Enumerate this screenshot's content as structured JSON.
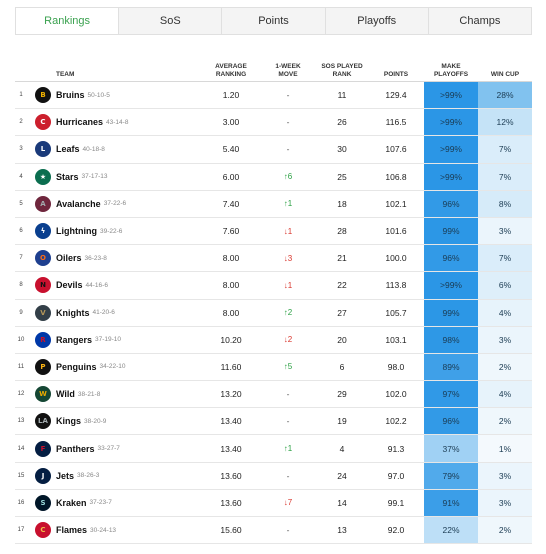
{
  "tabs": [
    {
      "label": "Rankings",
      "active": true
    },
    {
      "label": "SoS",
      "active": false
    },
    {
      "label": "Points",
      "active": false
    },
    {
      "label": "Playoffs",
      "active": false
    },
    {
      "label": "Champs",
      "active": false
    }
  ],
  "headers": {
    "team": "TEAM",
    "avg": "AVERAGE RANKING",
    "move": "1-WEEK MOVE",
    "sos": "SOS PLAYED RANK",
    "points": "POINTS",
    "playoffs": "MAKE PLAYOFFS",
    "cup": "WIN CUP"
  },
  "rows": [
    {
      "rank": "1",
      "team": "Bruins",
      "record": "50-10-5",
      "avg": "1.20",
      "move": "-",
      "sos": "11",
      "points": "129.4",
      "playoffs": ">99%",
      "cup": "28%",
      "playoffs_pct": 99.5,
      "cup_pct": 28,
      "logo": {
        "text": "B",
        "bg": "#111111",
        "fg": "#f4b400"
      }
    },
    {
      "rank": "2",
      "team": "Hurricanes",
      "record": "43-14-8",
      "avg": "3.00",
      "move": "-",
      "sos": "26",
      "points": "116.5",
      "playoffs": ">99%",
      "cup": "12%",
      "playoffs_pct": 99.5,
      "cup_pct": 12,
      "logo": {
        "text": "C",
        "bg": "#cc1f2d",
        "fg": "#ffffff"
      }
    },
    {
      "rank": "3",
      "team": "Leafs",
      "record": "40-18-8",
      "avg": "5.40",
      "move": "-",
      "sos": "30",
      "points": "107.6",
      "playoffs": ">99%",
      "cup": "7%",
      "playoffs_pct": 99.5,
      "cup_pct": 7,
      "logo": {
        "text": "L",
        "bg": "#1a3a7a",
        "fg": "#ffffff"
      }
    },
    {
      "rank": "4",
      "team": "Stars",
      "record": "37-17-13",
      "avg": "6.00",
      "move": "6",
      "move_dir": "up",
      "sos": "25",
      "points": "106.8",
      "playoffs": ">99%",
      "cup": "7%",
      "playoffs_pct": 99.5,
      "cup_pct": 7,
      "logo": {
        "text": "★",
        "bg": "#0b6e4f",
        "fg": "#ffffff"
      }
    },
    {
      "rank": "5",
      "team": "Avalanche",
      "record": "37-22-6",
      "avg": "7.40",
      "move": "1",
      "move_dir": "up",
      "sos": "18",
      "points": "102.1",
      "playoffs": "96%",
      "cup": "8%",
      "playoffs_pct": 96,
      "cup_pct": 8,
      "logo": {
        "text": "A",
        "bg": "#6f263d",
        "fg": "#a2aaad"
      }
    },
    {
      "rank": "6",
      "team": "Lightning",
      "record": "39-22-6",
      "avg": "7.60",
      "move": "1",
      "move_dir": "down",
      "sos": "28",
      "points": "101.6",
      "playoffs": "99%",
      "cup": "3%",
      "playoffs_pct": 99,
      "cup_pct": 3,
      "logo": {
        "text": "ϟ",
        "bg": "#0a3f8f",
        "fg": "#ffffff"
      }
    },
    {
      "rank": "7",
      "team": "Oilers",
      "record": "36-23-8",
      "avg": "8.00",
      "move": "3",
      "move_dir": "down",
      "sos": "21",
      "points": "100.0",
      "playoffs": "96%",
      "cup": "7%",
      "playoffs_pct": 96,
      "cup_pct": 7,
      "logo": {
        "text": "O",
        "bg": "#1e3f8f",
        "fg": "#ff6a13"
      }
    },
    {
      "rank": "8",
      "team": "Devils",
      "record": "44-16-6",
      "avg": "8.00",
      "move": "1",
      "move_dir": "down",
      "sos": "22",
      "points": "113.8",
      "playoffs": ">99%",
      "cup": "6%",
      "playoffs_pct": 99.5,
      "cup_pct": 6,
      "logo": {
        "text": "N",
        "bg": "#c8102e",
        "fg": "#111111"
      }
    },
    {
      "rank": "9",
      "team": "Knights",
      "record": "41-20-6",
      "avg": "8.00",
      "move": "2",
      "move_dir": "up",
      "sos": "27",
      "points": "105.7",
      "playoffs": "99%",
      "cup": "4%",
      "playoffs_pct": 99,
      "cup_pct": 4,
      "logo": {
        "text": "V",
        "bg": "#333f48",
        "fg": "#b4975a"
      }
    },
    {
      "rank": "10",
      "team": "Rangers",
      "record": "37-19-10",
      "avg": "10.20",
      "move": "2",
      "move_dir": "down",
      "sos": "20",
      "points": "103.1",
      "playoffs": "98%",
      "cup": "3%",
      "playoffs_pct": 98,
      "cup_pct": 3,
      "logo": {
        "text": "R",
        "bg": "#0038a8",
        "fg": "#ce1126"
      }
    },
    {
      "rank": "11",
      "team": "Penguins",
      "record": "34-22-10",
      "avg": "11.60",
      "move": "5",
      "move_dir": "up",
      "sos": "6",
      "points": "98.0",
      "playoffs": "89%",
      "cup": "2%",
      "playoffs_pct": 89,
      "cup_pct": 2,
      "logo": {
        "text": "P",
        "bg": "#111111",
        "fg": "#fcb514"
      }
    },
    {
      "rank": "12",
      "team": "Wild",
      "record": "38-21-8",
      "avg": "13.20",
      "move": "-",
      "sos": "29",
      "points": "102.0",
      "playoffs": "97%",
      "cup": "4%",
      "playoffs_pct": 97,
      "cup_pct": 4,
      "logo": {
        "text": "W",
        "bg": "#154734",
        "fg": "#eaaa00"
      }
    },
    {
      "rank": "13",
      "team": "Kings",
      "record": "38-20-9",
      "avg": "13.40",
      "move": "-",
      "sos": "19",
      "points": "102.2",
      "playoffs": "96%",
      "cup": "2%",
      "playoffs_pct": 96,
      "cup_pct": 2,
      "logo": {
        "text": "LA",
        "bg": "#111111",
        "fg": "#a2aaad"
      }
    },
    {
      "rank": "14",
      "team": "Panthers",
      "record": "33-27-7",
      "avg": "13.40",
      "move": "1",
      "move_dir": "up",
      "sos": "4",
      "points": "91.3",
      "playoffs": "37%",
      "cup": "1%",
      "playoffs_pct": 37,
      "cup_pct": 1,
      "logo": {
        "text": "F",
        "bg": "#041e42",
        "fg": "#c8102e"
      }
    },
    {
      "rank": "15",
      "team": "Jets",
      "record": "38-26-3",
      "avg": "13.60",
      "move": "-",
      "sos": "24",
      "points": "97.0",
      "playoffs": "79%",
      "cup": "3%",
      "playoffs_pct": 79,
      "cup_pct": 3,
      "logo": {
        "text": "J",
        "bg": "#041e42",
        "fg": "#ffffff"
      }
    },
    {
      "rank": "16",
      "team": "Kraken",
      "record": "37-23-7",
      "avg": "13.60",
      "move": "7",
      "move_dir": "down",
      "sos": "14",
      "points": "99.1",
      "playoffs": "91%",
      "cup": "3%",
      "playoffs_pct": 91,
      "cup_pct": 3,
      "logo": {
        "text": "S",
        "bg": "#001628",
        "fg": "#99d9d9"
      }
    },
    {
      "rank": "17",
      "team": "Flames",
      "record": "30-24-13",
      "avg": "15.60",
      "move": "-",
      "sos": "13",
      "points": "92.0",
      "playoffs": "22%",
      "cup": "2%",
      "playoffs_pct": 22,
      "cup_pct": 2,
      "logo": {
        "text": "C",
        "bg": "#c8102e",
        "fg": "#f1be48"
      }
    }
  ]
}
